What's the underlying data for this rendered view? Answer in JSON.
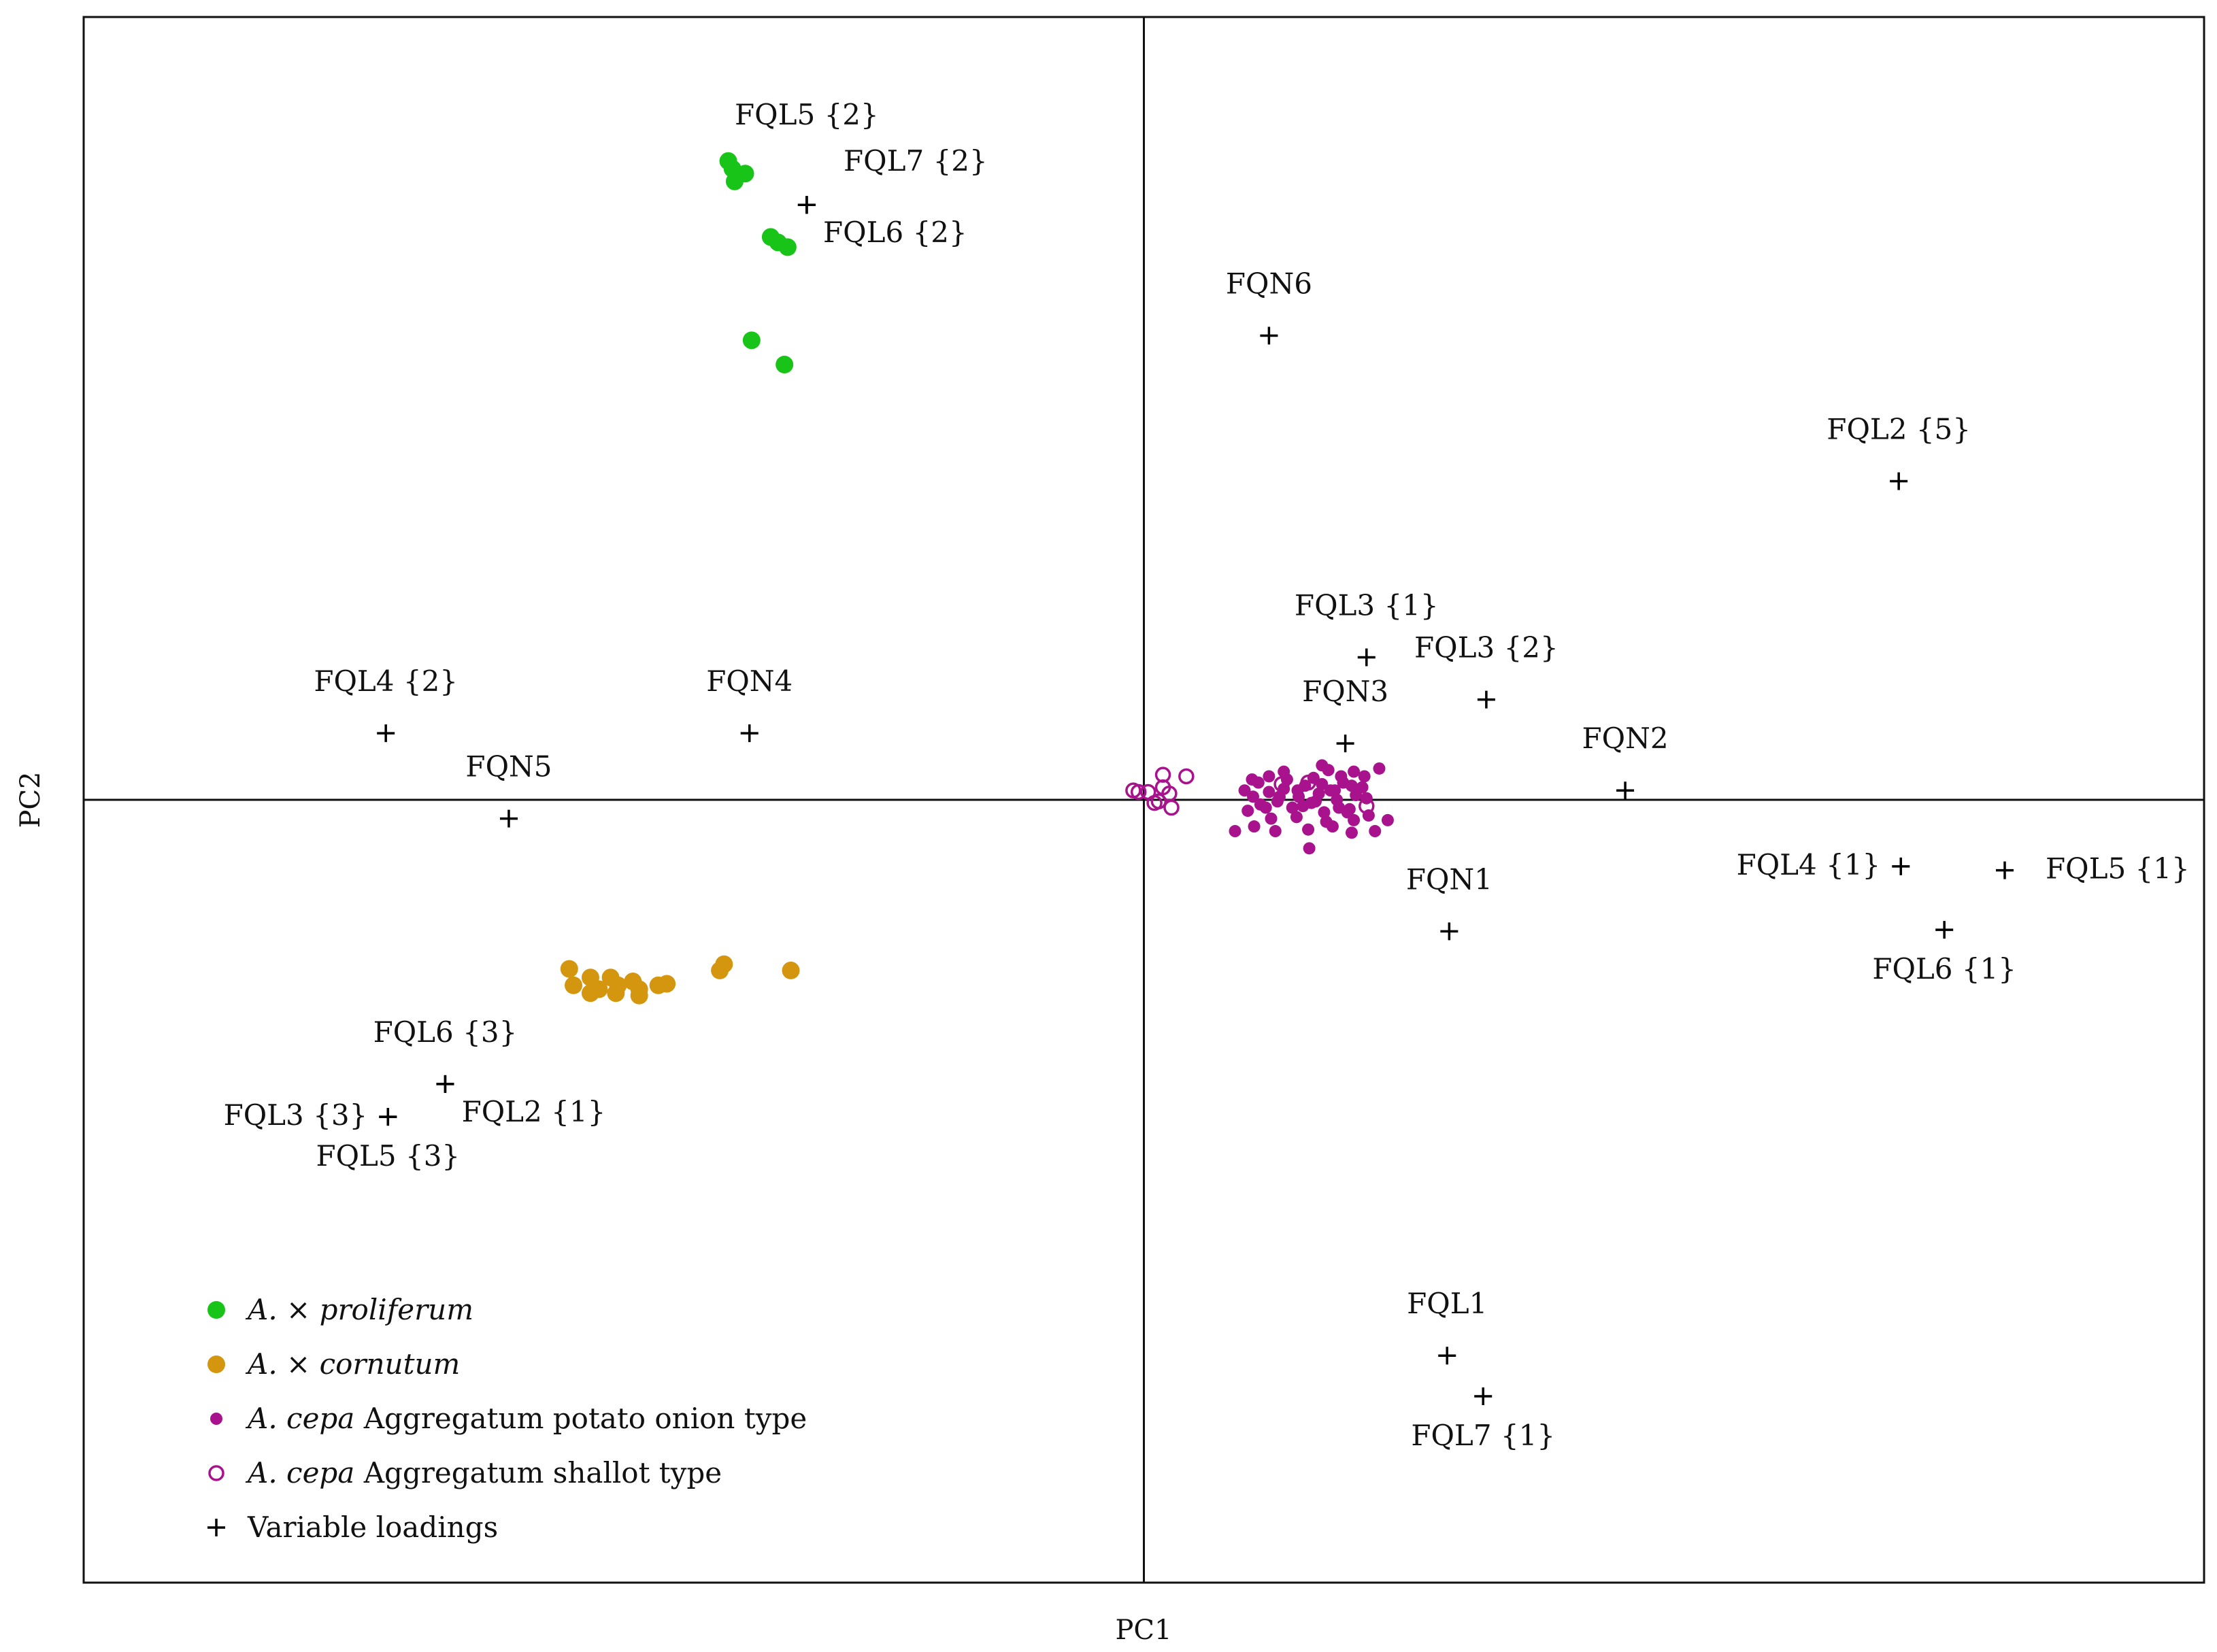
{
  "chart_data": {
    "type": "scatter",
    "title": "",
    "xlabel": "PC1",
    "ylabel": "PC2",
    "xlim": [
      -1.0,
      1.0
    ],
    "ylim": [
      -1.0,
      1.0
    ],
    "grid": false,
    "axes_through_origin": true,
    "legend_position": "bottom-left",
    "series": [
      {
        "name_prefix": "A. × ",
        "name_italic": "proliferum",
        "name_suffix": "",
        "marker": "filled-circle",
        "color": "#19c419",
        "points": [
          [
            -0.392,
            0.816
          ],
          [
            -0.388,
            0.806
          ],
          [
            -0.384,
            0.8
          ],
          [
            -0.376,
            0.8
          ],
          [
            -0.386,
            0.79
          ],
          [
            -0.352,
            0.719
          ],
          [
            -0.345,
            0.712
          ],
          [
            -0.336,
            0.706
          ],
          [
            -0.37,
            0.587
          ],
          [
            -0.339,
            0.556
          ]
        ]
      },
      {
        "name_prefix": "A. × ",
        "name_italic": "cornutum",
        "name_suffix": "",
        "marker": "filled-circle",
        "color": "#d4960f",
        "points": [
          [
            -0.542,
            -0.216
          ],
          [
            -0.522,
            -0.227
          ],
          [
            -0.503,
            -0.227
          ],
          [
            -0.482,
            -0.232
          ],
          [
            -0.538,
            -0.237
          ],
          [
            -0.514,
            -0.242
          ],
          [
            -0.496,
            -0.237
          ],
          [
            -0.476,
            -0.242
          ],
          [
            -0.458,
            -0.237
          ],
          [
            -0.522,
            -0.247
          ],
          [
            -0.498,
            -0.247
          ],
          [
            -0.476,
            -0.25
          ],
          [
            -0.45,
            -0.235
          ],
          [
            -0.4,
            -0.218
          ],
          [
            -0.396,
            -0.21
          ],
          [
            -0.333,
            -0.218
          ]
        ]
      },
      {
        "name_prefix": "A. ",
        "name_italic": "cepa",
        "name_suffix": " Aggregatum potato onion type",
        "marker": "filled-circle-small",
        "color": "#a8128c",
        "points": [
          [
            0.095,
            0.012
          ],
          [
            0.103,
            0.004
          ],
          [
            0.11,
            -0.006
          ],
          [
            0.118,
            0.01
          ],
          [
            0.126,
            -0.002
          ],
          [
            0.132,
            0.014
          ],
          [
            0.14,
            -0.01
          ],
          [
            0.146,
            0.004
          ],
          [
            0.152,
            0.018
          ],
          [
            0.158,
            -0.004
          ],
          [
            0.165,
            0.008
          ],
          [
            0.17,
            -0.016
          ],
          [
            0.176,
            0.012
          ],
          [
            0.182,
            0.0
          ],
          [
            0.188,
            0.022
          ],
          [
            0.194,
            -0.012
          ],
          [
            0.2,
            0.006
          ],
          [
            0.206,
            0.016
          ],
          [
            0.212,
            -0.02
          ],
          [
            0.098,
            -0.014
          ],
          [
            0.108,
            0.022
          ],
          [
            0.12,
            -0.024
          ],
          [
            0.135,
            0.026
          ],
          [
            0.144,
            -0.022
          ],
          [
            0.16,
            0.028
          ],
          [
            0.172,
            -0.028
          ],
          [
            0.186,
            0.03
          ],
          [
            0.198,
            -0.026
          ],
          [
            0.208,
            0.03
          ],
          [
            0.115,
            -0.01
          ],
          [
            0.128,
            0.004
          ],
          [
            0.15,
            -0.008
          ],
          [
            0.168,
            0.02
          ],
          [
            0.184,
            -0.01
          ],
          [
            0.196,
            0.018
          ],
          [
            0.21,
            0.002
          ],
          [
            0.086,
            -0.04
          ],
          [
            0.104,
            -0.034
          ],
          [
            0.124,
            -0.04
          ],
          [
            0.155,
            -0.038
          ],
          [
            0.178,
            -0.034
          ],
          [
            0.196,
            -0.042
          ],
          [
            0.218,
            -0.04
          ],
          [
            0.23,
            -0.026
          ],
          [
            0.156,
            -0.062
          ],
          [
            0.174,
            0.038
          ],
          [
            0.198,
            0.036
          ],
          [
            0.222,
            0.04
          ],
          [
            0.168,
            0.044
          ],
          [
            0.132,
            0.036
          ],
          [
            0.102,
            0.026
          ],
          [
            0.118,
            0.03
          ],
          [
            0.145,
            0.012
          ],
          [
            0.162,
            -0.002
          ],
          [
            0.18,
            0.012
          ],
          [
            0.192,
            -0.016
          ]
        ]
      },
      {
        "name_prefix": "A. ",
        "name_italic": "cepa",
        "name_suffix": " Aggregatum shallot type",
        "marker": "open-circle",
        "color": "#a8128c",
        "points": [
          [
            -0.01,
            0.012
          ],
          [
            -0.005,
            0.01
          ],
          [
            0.004,
            0.01
          ],
          [
            0.018,
            0.032
          ],
          [
            0.024,
            0.008
          ],
          [
            0.04,
            0.03
          ],
          [
            0.014,
            -0.002
          ],
          [
            0.026,
            -0.01
          ],
          [
            0.01,
            -0.004
          ],
          [
            0.018,
            0.016
          ],
          [
            0.13,
            0.02
          ],
          [
            0.155,
            0.022
          ],
          [
            0.21,
            -0.008
          ]
        ]
      }
    ],
    "loadings": {
      "legend_label": "Variable loadings",
      "marker": "plus",
      "color": "#000000",
      "points": [
        {
          "label": "FQL5 {2}",
          "x": -0.318,
          "y": 0.76,
          "label_pos": "above-left"
        },
        {
          "label": "FQL7 {2}",
          "x": -0.318,
          "y": 0.76,
          "label_pos": "above-right"
        },
        {
          "label": "FQL6 {2}",
          "x": -0.318,
          "y": 0.76,
          "label_pos": "below-right"
        },
        {
          "label": "FQN6",
          "x": 0.118,
          "y": 0.593,
          "label_pos": "above"
        },
        {
          "label": "FQL2 {5}",
          "x": 0.712,
          "y": 0.407,
          "label_pos": "above"
        },
        {
          "label": "FQL3 {1}",
          "x": 0.21,
          "y": 0.182,
          "label_pos": "above"
        },
        {
          "label": "FQL3 {2}",
          "x": 0.323,
          "y": 0.128,
          "label_pos": "above"
        },
        {
          "label": "FQN3",
          "x": 0.19,
          "y": 0.072,
          "label_pos": "above"
        },
        {
          "label": "FQN2",
          "x": 0.454,
          "y": 0.012,
          "label_pos": "above"
        },
        {
          "label": "FQL4 {2}",
          "x": -0.715,
          "y": 0.085,
          "label_pos": "above"
        },
        {
          "label": "FQN4",
          "x": -0.372,
          "y": 0.085,
          "label_pos": "above"
        },
        {
          "label": "FQN5",
          "x": -0.599,
          "y": -0.024,
          "label_pos": "above"
        },
        {
          "label": "FQL4 {1}",
          "x": 0.714,
          "y": -0.085,
          "label_pos": "left"
        },
        {
          "label": "FQL5 {1}",
          "x": 0.812,
          "y": -0.09,
          "label_pos": "right"
        },
        {
          "label": "FQL6 {1}",
          "x": 0.755,
          "y": -0.166,
          "label_pos": "below"
        },
        {
          "label": "FQN1",
          "x": 0.288,
          "y": -0.168,
          "label_pos": "above"
        },
        {
          "label": "FQL6 {3}",
          "x": -0.659,
          "y": -0.363,
          "label_pos": "above"
        },
        {
          "label": "FQL2 {1}",
          "x": -0.659,
          "y": -0.363,
          "label_pos": "below-right"
        },
        {
          "label": "FQL3 {3}",
          "x": -0.713,
          "y": -0.405,
          "label_pos": "left"
        },
        {
          "label": "FQL5 {3}",
          "x": -0.713,
          "y": -0.405,
          "label_pos": "below"
        },
        {
          "label": "FQL1",
          "x": 0.286,
          "y": -0.71,
          "label_pos": "above"
        },
        {
          "label": "FQL7 {1}",
          "x": 0.32,
          "y": -0.762,
          "label_pos": "below"
        }
      ]
    }
  }
}
